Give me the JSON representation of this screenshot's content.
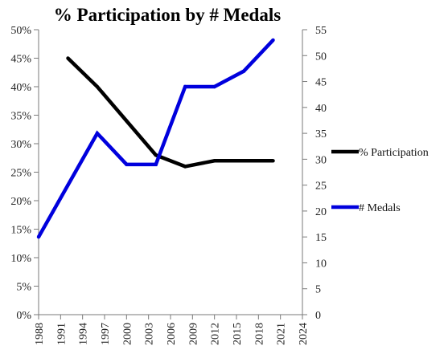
{
  "chart_data": {
    "type": "line",
    "title": "% Participation by # Medals",
    "xlabel": "",
    "ylabel": "",
    "x_ticks": [
      "1988",
      "1991",
      "1994",
      "1997",
      "2000",
      "2003",
      "2006",
      "2009",
      "2012",
      "2015",
      "2018",
      "2021",
      "2024"
    ],
    "xlim": [
      1988,
      2024
    ],
    "y_left": {
      "ticks": [
        "0%",
        "5%",
        "10%",
        "15%",
        "20%",
        "25%",
        "30%",
        "35%",
        "40%",
        "45%",
        "50%"
      ],
      "lim": [
        0,
        50
      ]
    },
    "y_right": {
      "ticks": [
        "0",
        "5",
        "10",
        "15",
        "20",
        "25",
        "30",
        "35",
        "40",
        "45",
        "50",
        "55"
      ],
      "lim": [
        0,
        55
      ]
    },
    "legend_position": "right",
    "grid": false,
    "series": [
      {
        "name": "% Participation",
        "axis": "left",
        "color": "#000000",
        "x": [
          1992,
          1996,
          2000,
          2004,
          2008,
          2012,
          2016,
          2020
        ],
        "values": [
          45,
          40,
          34,
          28,
          26,
          27,
          27,
          27
        ]
      },
      {
        "name": "# Medals",
        "axis": "right",
        "color": "#0000dd",
        "x": [
          1988,
          1992,
          1996,
          2000,
          2004,
          2008,
          2012,
          2016,
          2020
        ],
        "values": [
          15,
          25,
          35,
          29,
          29,
          44,
          44,
          47,
          53
        ]
      }
    ]
  }
}
